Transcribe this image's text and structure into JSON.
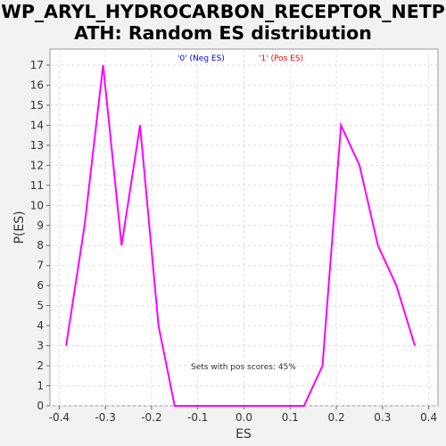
{
  "chart_data": {
    "type": "line",
    "title_line1": "WP_ARYL_HYDROCARBON_RECEPTOR_NETP",
    "title_line2": "ATH: Random ES distribution",
    "xlabel": "ES",
    "ylabel": "P(ES)",
    "xlim": [
      -0.42,
      0.42
    ],
    "ylim": [
      0,
      17.8
    ],
    "x_ticks": [
      -0.4,
      -0.3,
      -0.2,
      -0.1,
      0.0,
      0.1,
      0.2,
      0.3,
      0.4
    ],
    "x_tick_labels": [
      "-0.4",
      "-0.3",
      "-0.2",
      "-0.1",
      "0.0",
      "0.1",
      "0.2",
      "0.3",
      "0.4"
    ],
    "y_ticks": [
      0,
      1,
      2,
      3,
      4,
      5,
      6,
      7,
      8,
      9,
      10,
      11,
      12,
      13,
      14,
      15,
      16,
      17
    ],
    "grid": true,
    "legend": {
      "placement": "top-center",
      "entries": [
        {
          "label": "'0' (Neg ES)",
          "color": "#0000ff"
        },
        {
          "label": "'1' (Pos ES)",
          "color": "#ff0000"
        }
      ]
    },
    "annotation": "Sets with pos scores: 45%",
    "series": [
      {
        "color": "#ff00ff",
        "x": [
          -0.385,
          -0.345,
          -0.305,
          -0.265,
          -0.225,
          -0.185,
          -0.15,
          -0.11,
          -0.07,
          -0.03,
          0.01,
          0.05,
          0.09,
          0.13,
          0.17,
          0.21,
          0.25,
          0.29,
          0.33,
          0.37
        ],
        "y": [
          3,
          9,
          17,
          8,
          14,
          4,
          0,
          0,
          0,
          0,
          0,
          0,
          0,
          0,
          2,
          14,
          12,
          8,
          6,
          3
        ]
      }
    ]
  }
}
